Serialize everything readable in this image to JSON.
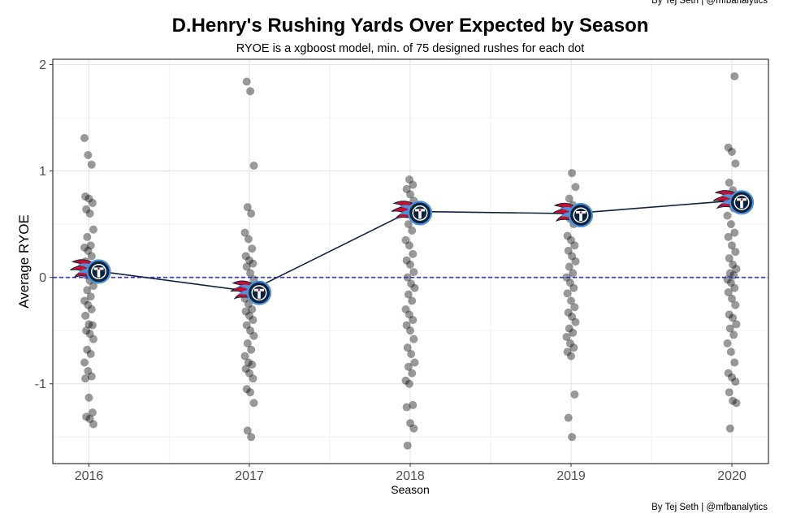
{
  "chart_data": {
    "type": "scatter",
    "title": "D.Henry's Rushing Yards Over Expected by Season",
    "subtitle": "RYOE is a xgboost model, min. of 75 designed rushes for each dot",
    "xlabel": "Season",
    "ylabel": "Average RYOE",
    "caption": "By Tej Seth | @mfbanalytics",
    "x_categories": [
      "2016",
      "2017",
      "2018",
      "2019",
      "2020"
    ],
    "ylim": [
      -1.75,
      2.05
    ],
    "yticks": [
      2,
      1,
      0,
      -1
    ],
    "ytick_labels": [
      "2",
      "1",
      "0",
      "-1"
    ],
    "grid": true,
    "reference_line": {
      "y": 0,
      "color": "#3333cc",
      "style": "dashed"
    },
    "points_color": "#000000",
    "points_opacity": 0.4,
    "line_color": "#0c2340",
    "logo_colors": {
      "navy": "#0c2340",
      "blue": "#4b92db",
      "red": "#c8102e"
    },
    "seasons": [
      {
        "season": "2016",
        "mean": 0.07,
        "values": [
          1.31,
          1.15,
          1.06,
          0.76,
          0.74,
          0.7,
          0.64,
          0.6,
          0.45,
          0.38,
          0.3,
          0.28,
          0.25,
          0.2,
          0.15,
          0.1,
          0.06,
          0.02,
          -0.03,
          -0.08,
          -0.12,
          -0.18,
          -0.22,
          -0.26,
          -0.3,
          -0.36,
          -0.44,
          -0.45,
          -0.5,
          -0.53,
          -0.58,
          -0.68,
          -0.72,
          -0.8,
          -0.88,
          -0.93,
          -0.95,
          -1.13,
          -1.27,
          -1.31,
          -1.33,
          -1.38
        ]
      },
      {
        "season": "2017",
        "mean": -0.13,
        "values": [
          1.84,
          1.75,
          1.05,
          0.66,
          0.6,
          0.42,
          0.36,
          0.27,
          0.2,
          0.16,
          0.13,
          0.1,
          0.04,
          -0.02,
          -0.08,
          -0.15,
          -0.2,
          -0.25,
          -0.3,
          -0.32,
          -0.36,
          -0.4,
          -0.45,
          -0.5,
          -0.55,
          -0.62,
          -0.68,
          -0.74,
          -0.8,
          -0.82,
          -0.86,
          -0.9,
          -0.95,
          -1.05,
          -1.08,
          -1.18,
          -1.44,
          -1.5
        ]
      },
      {
        "season": "2018",
        "mean": 0.62,
        "values": [
          0.92,
          0.87,
          0.83,
          0.78,
          0.72,
          0.66,
          0.6,
          0.56,
          0.5,
          0.44,
          0.35,
          0.3,
          0.22,
          0.16,
          0.12,
          0.05,
          0.0,
          -0.06,
          -0.1,
          -0.16,
          -0.22,
          -0.3,
          -0.35,
          -0.4,
          -0.45,
          -0.5,
          -0.58,
          -0.66,
          -0.72,
          -0.8,
          -0.84,
          -0.9,
          -0.97,
          -1.0,
          -1.2,
          -1.22,
          -1.37,
          -1.42,
          -1.58
        ]
      },
      {
        "season": "2019",
        "mean": 0.6,
        "values": [
          0.98,
          0.85,
          0.74,
          0.68,
          0.6,
          0.55,
          0.5,
          0.39,
          0.35,
          0.3,
          0.25,
          0.2,
          0.15,
          0.1,
          0.04,
          0.0,
          -0.05,
          -0.1,
          -0.15,
          -0.22,
          -0.28,
          -0.33,
          -0.37,
          -0.42,
          -0.48,
          -0.52,
          -0.56,
          -0.62,
          -0.66,
          -0.7,
          -0.74,
          -1.1,
          -1.32,
          -1.5
        ]
      },
      {
        "season": "2020",
        "mean": 0.72,
        "values": [
          1.89,
          1.22,
          1.18,
          1.07,
          0.89,
          0.82,
          0.77,
          0.7,
          0.65,
          0.58,
          0.5,
          0.42,
          0.38,
          0.3,
          0.24,
          0.18,
          0.12,
          0.08,
          0.04,
          0.02,
          -0.02,
          -0.05,
          -0.1,
          -0.14,
          -0.2,
          -0.26,
          -0.35,
          -0.38,
          -0.44,
          -0.48,
          -0.54,
          -0.62,
          -0.7,
          -0.8,
          -0.9,
          -0.94,
          -0.98,
          -1.08,
          -1.16,
          -1.18,
          -1.42
        ]
      }
    ]
  }
}
